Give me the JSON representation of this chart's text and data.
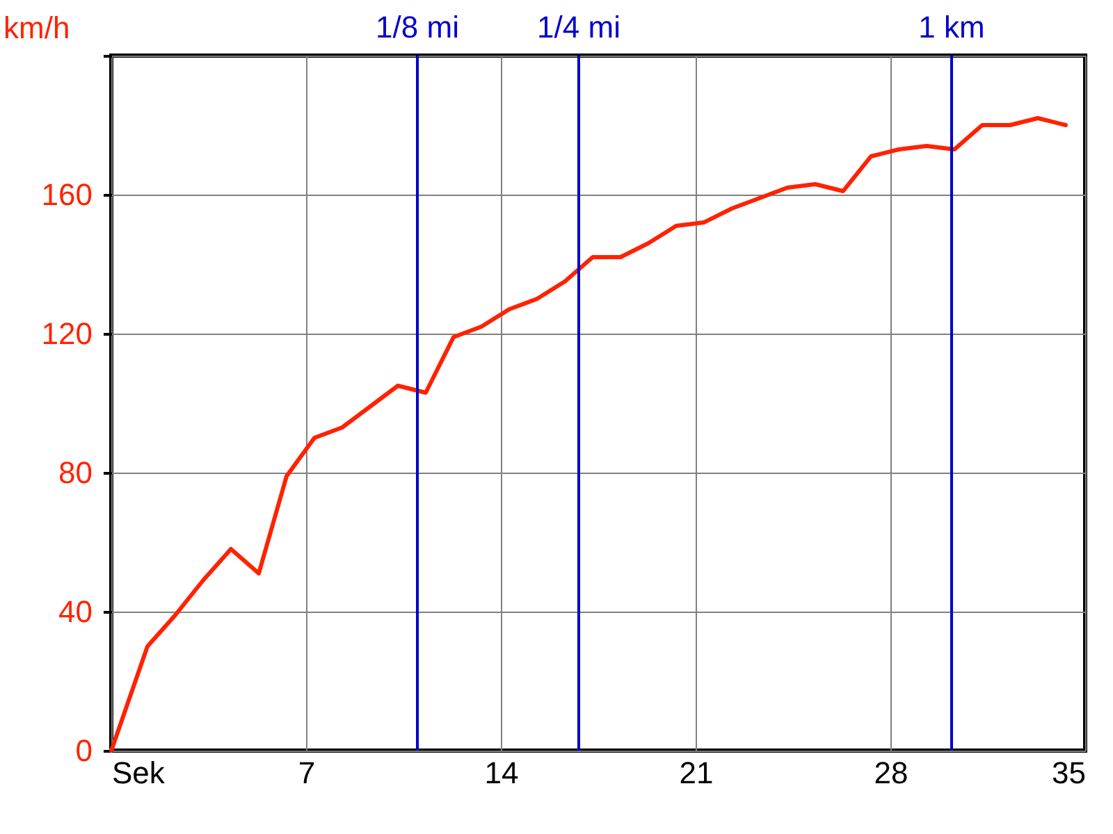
{
  "chart_data": {
    "type": "line",
    "ylabel": "km/h",
    "x": [
      0,
      1.3,
      2.3,
      3.3,
      4.3,
      5.3,
      6.3,
      7.3,
      8.3,
      9.3,
      10.3,
      11.3,
      12.3,
      13.3,
      14.3,
      15.3,
      16.3,
      17.3,
      18.3,
      19.3,
      20.3,
      21.3,
      22.3,
      23.3,
      24.3,
      25.3,
      26.3,
      27.3,
      28.3,
      29.3,
      30.3,
      31.3,
      32.3,
      33.3,
      34.3
    ],
    "series": [
      {
        "color": "#ff2200",
        "values": [
          0,
          30,
          39,
          49,
          58,
          51,
          79,
          90,
          93,
          99,
          105,
          103,
          119,
          122,
          127,
          130,
          135,
          142,
          142,
          146,
          151,
          152,
          156,
          159,
          162,
          163,
          161,
          171,
          173,
          174,
          173,
          180,
          180,
          182,
          180
        ]
      }
    ],
    "xlim": [
      0,
      35
    ],
    "xticks": [
      {
        "value": 0,
        "label": "Sek"
      },
      7,
      14,
      21,
      28,
      35
    ],
    "ylim": [
      0,
      200
    ],
    "yticks": [
      0,
      40,
      80,
      120,
      160,
      {
        "value": 200,
        "label": null
      }
    ],
    "grid": true,
    "marker": "none",
    "line_style": "solid",
    "legend": false,
    "ref_lines": [
      {
        "axis": "x",
        "value": 11,
        "label": "1/8 mi",
        "color": "#0000cc"
      },
      {
        "axis": "x",
        "value": 16.8,
        "label": "1/4 mi",
        "color": "#0000cc"
      },
      {
        "axis": "x",
        "value": 30.2,
        "label": "1 km",
        "color": "#0000cc"
      }
    ]
  }
}
